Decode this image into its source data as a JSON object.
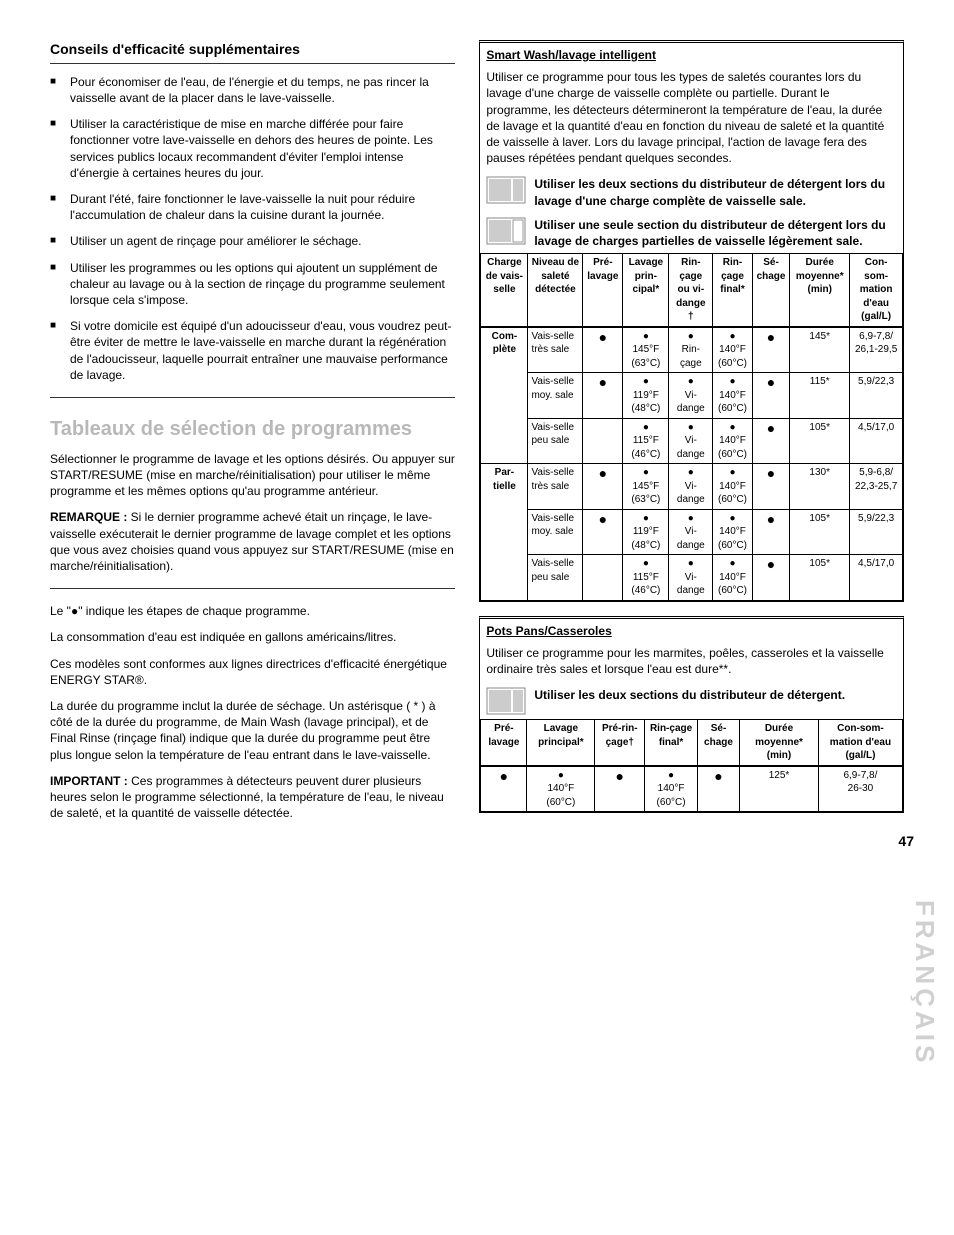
{
  "left": {
    "tips_title": "Conseils d'efficacité supplémentaires",
    "tips": [
      "Pour économiser de l'eau, de l'énergie et du temps, ne pas rincer la vaisselle avant de la placer dans le lave-vaisselle.",
      "Utiliser la caractéristique de mise en marche différée pour faire fonctionner votre lave-vaisselle en dehors des heures de pointe. Les services publics locaux recommandent d'éviter l'emploi intense d'énergie à certaines heures du jour.",
      "Durant l'été, faire fonctionner le lave-vaisselle la nuit pour réduire l'accumulation de chaleur dans la cuisine durant la journée.",
      "Utiliser un agent de rinçage pour améliorer le séchage.",
      "Utiliser les programmes ou les options qui ajoutent un supplément de chaleur au lavage ou à la section de rinçage du programme seulement lorsque cela s'impose.",
      "Si votre domicile est équipé d'un adoucisseur d'eau, vous voudrez peut-être éviter de mettre le lave-vaisselle en marche durant la régénération de l'adoucisseur, laquelle pourrait entraîner une mauvaise performance de lavage."
    ],
    "section_title": "Tableaux de sélection de programmes",
    "p1": "Sélectionner le programme de lavage et les options désirés. Ou appuyer sur START/RESUME (mise en marche/réinitialisation) pour utiliser le même programme et les mêmes options qu'au programme antérieur.",
    "remarque_label": "REMARQUE :",
    "remarque": " Si le dernier programme achevé était un rinçage, le lave-vaisselle exécuterait le dernier programme de lavage complet et les options que vous avez choisies quand vous appuyez sur START/RESUME (mise en marche/réinitialisation).",
    "p2a": "Le \"",
    "p2b": "\" indique les étapes de chaque programme.",
    "p3": "La consommation d'eau est indiquée en gallons américains/litres.",
    "p4": "Ces modèles sont conformes aux lignes directrices d'efficacité énergétique ENERGY STAR®.",
    "p5": "La durée du programme inclut la durée de séchage. Un astérisque ( * ) à côté de la durée du programme, de Main Wash (lavage principal), et de Final Rinse (rinçage final) indique que la durée du programme peut être plus longue selon la température de l'eau entrant dans le lave-vaisselle.",
    "important_label": "IMPORTANT :",
    "important": " Ces programmes à détecteurs peuvent durer plusieurs heures selon le programme sélectionné, la température de l'eau, le niveau de saleté, et la quantité de vaisselle détectée."
  },
  "smart": {
    "title": "Smart Wash/lavage intelligent",
    "desc": "Utiliser ce programme pour tous les types de saletés courantes lors du lavage d'une charge de vaisselle complète ou partielle. Durant le programme, les détecteurs détermineront la température de l'eau, la durée de lavage et la quantité d'eau en fonction du niveau de saleté et la quantité de vaisselle à laver. Lors du lavage principal, l'action de lavage fera des pauses répétées pendant quelques secondes.",
    "deterg1": "Utiliser les deux sections du distributeur de détergent lors du lavage d'une charge complète de vaisselle sale.",
    "deterg2": "Utiliser une seule section du distributeur de détergent lors du lavage de charges partielles de vaisselle légèrement sale.",
    "headers": [
      "Charge de vais-selle",
      "Niveau de saleté détectée",
      "Pré-lavage",
      "Lavage prin-cipal*",
      "Rin-çage ou vi-dange †",
      "Rin-çage final*",
      "Sé-chage",
      "Durée moyenne* (min)",
      "Con-som-mation d'eau (gal/L)"
    ],
    "group1_label": "Com-plète",
    "group2_label": "Par-tielle",
    "rows": [
      {
        "lvl": "Vais-selle très sale",
        "pre": "●",
        "main": "●\n145°F\n(63°C)",
        "rin": "●\nRin-çage",
        "fin": "●\n140°F\n(60°C)",
        "sec": "●",
        "dur": "145*",
        "cons": "6,9-7,8/\n26,1-29,5"
      },
      {
        "lvl": "Vais-selle moy. sale",
        "pre": "●",
        "main": "●\n119°F\n(48°C)",
        "rin": "●\nVi-dange",
        "fin": "●\n140°F\n(60°C)",
        "sec": "●",
        "dur": "115*",
        "cons": "5,9/22,3"
      },
      {
        "lvl": "Vais-selle peu sale",
        "pre": "",
        "main": "●\n115°F\n(46°C)",
        "rin": "●\nVi-dange",
        "fin": "●\n140°F\n(60°C)",
        "sec": "●",
        "dur": "105*",
        "cons": "4,5/17,0"
      },
      {
        "lvl": "Vais-selle très sale",
        "pre": "●",
        "main": "●\n145°F\n(63°C)",
        "rin": "●\nVi-dange",
        "fin": "●\n140°F\n(60°C)",
        "sec": "●",
        "dur": "130*",
        "cons": "5,9-6,8/\n22,3-25,7"
      },
      {
        "lvl": "Vais-selle moy. sale",
        "pre": "●",
        "main": "●\n119°F\n(48°C)",
        "rin": "●\nVi-dange",
        "fin": "●\n140°F\n(60°C)",
        "sec": "●",
        "dur": "105*",
        "cons": "5,9/22,3"
      },
      {
        "lvl": "Vais-selle peu sale",
        "pre": "",
        "main": "●\n115°F\n(46°C)",
        "rin": "●\nVi-dange",
        "fin": "●\n140°F\n(60°C)",
        "sec": "●",
        "dur": "105*",
        "cons": "4,5/17,0"
      }
    ]
  },
  "pots": {
    "title": "Pots Pans/Casseroles",
    "desc": "Utiliser ce programme pour les marmites, poêles, casseroles et la vaisselle ordinaire très sales et lorsque l'eau est dure**.",
    "deterg": "Utiliser les deux sections du distributeur de détergent.",
    "headers": [
      "Pré-lavage",
      "Lavage principal*",
      "Pré-rin-çage†",
      "Rin-çage final*",
      "Sé-chage",
      "Durée moyenne* (min)",
      "Con-som-mation d'eau (gal/L)"
    ],
    "row": {
      "pre": "●",
      "main": "●\n140°F\n(60°C)",
      "prerin": "●",
      "fin": "●\n140°F\n(60°C)",
      "sec": "●",
      "dur": "125*",
      "cons": "6,9-7,8/\n26-30"
    }
  },
  "sidelabel": "FRANÇAIS",
  "pagenum": "47"
}
